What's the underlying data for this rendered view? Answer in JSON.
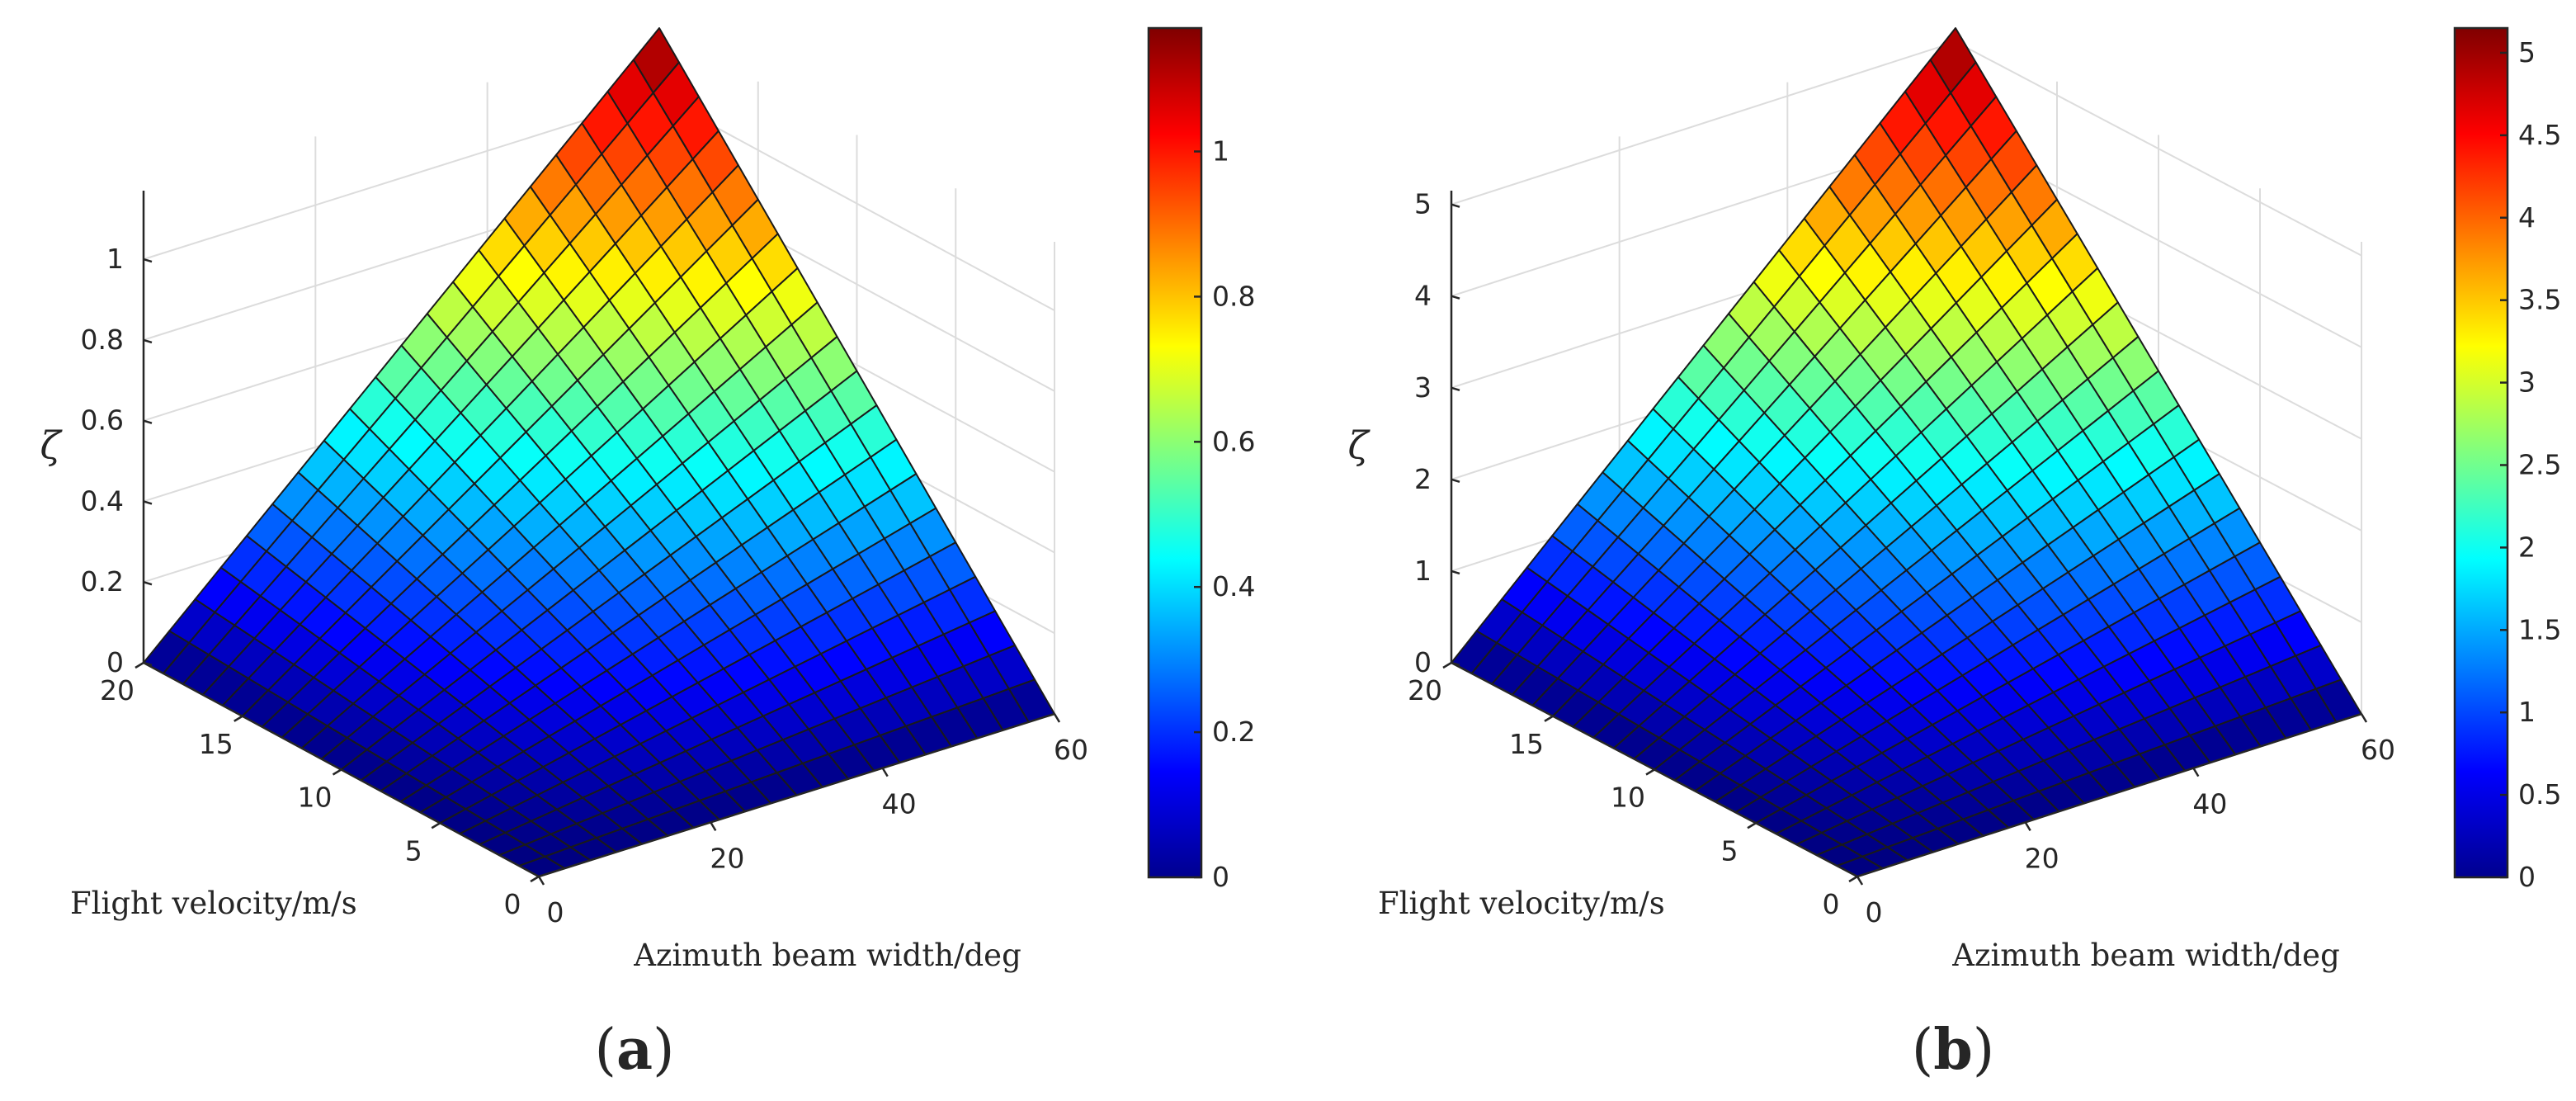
{
  "figure": {
    "panel_labels": [
      {
        "open": "(",
        "letter": "a",
        "close": ")"
      },
      {
        "open": "(",
        "letter": "b",
        "close": ")"
      }
    ]
  },
  "chart_data": [
    {
      "type": "surface3d",
      "panel": "(a)",
      "title": "",
      "xlabel": "Azimuth beam width/deg",
      "ylabel": "Flight velocity/m/s",
      "zlabel": "ζ",
      "xlim": [
        0,
        60
      ],
      "ylim": [
        0,
        20
      ],
      "zlim": [
        0,
        1.17
      ],
      "xticks": [
        0,
        20,
        40,
        60
      ],
      "yticks": [
        0,
        5,
        10,
        15,
        20
      ],
      "zticks": [
        0,
        0.2,
        0.4,
        0.6,
        0.8,
        1
      ],
      "grid_divisions": 20,
      "surface_model": "zeta = zmax * (azimuth/60) * (velocity/20)",
      "zmax": 1.17,
      "colormap": "jet",
      "colorbar": {
        "range": [
          0,
          1.17
        ],
        "ticks": [
          0,
          0.2,
          0.4,
          0.6,
          0.8,
          1
        ]
      }
    },
    {
      "type": "surface3d",
      "panel": "(b)",
      "title": "",
      "xlabel": "Azimuth beam width/deg",
      "ylabel": "Flight velocity/m/s",
      "zlabel": "ζ",
      "xlim": [
        0,
        60
      ],
      "ylim": [
        0,
        20
      ],
      "zlim": [
        0,
        5.15
      ],
      "xticks": [
        0,
        20,
        40,
        60
      ],
      "yticks": [
        0,
        5,
        10,
        15,
        20
      ],
      "zticks": [
        0,
        1,
        2,
        3,
        4,
        5
      ],
      "grid_divisions": 20,
      "surface_model": "zeta = zmax * (azimuth/60) * (velocity/20)",
      "zmax": 5.15,
      "colormap": "jet",
      "colorbar": {
        "range": [
          0,
          5.15
        ],
        "ticks": [
          0,
          0.5,
          1,
          1.5,
          2,
          2.5,
          3,
          3.5,
          4,
          4.5,
          5
        ]
      }
    }
  ]
}
